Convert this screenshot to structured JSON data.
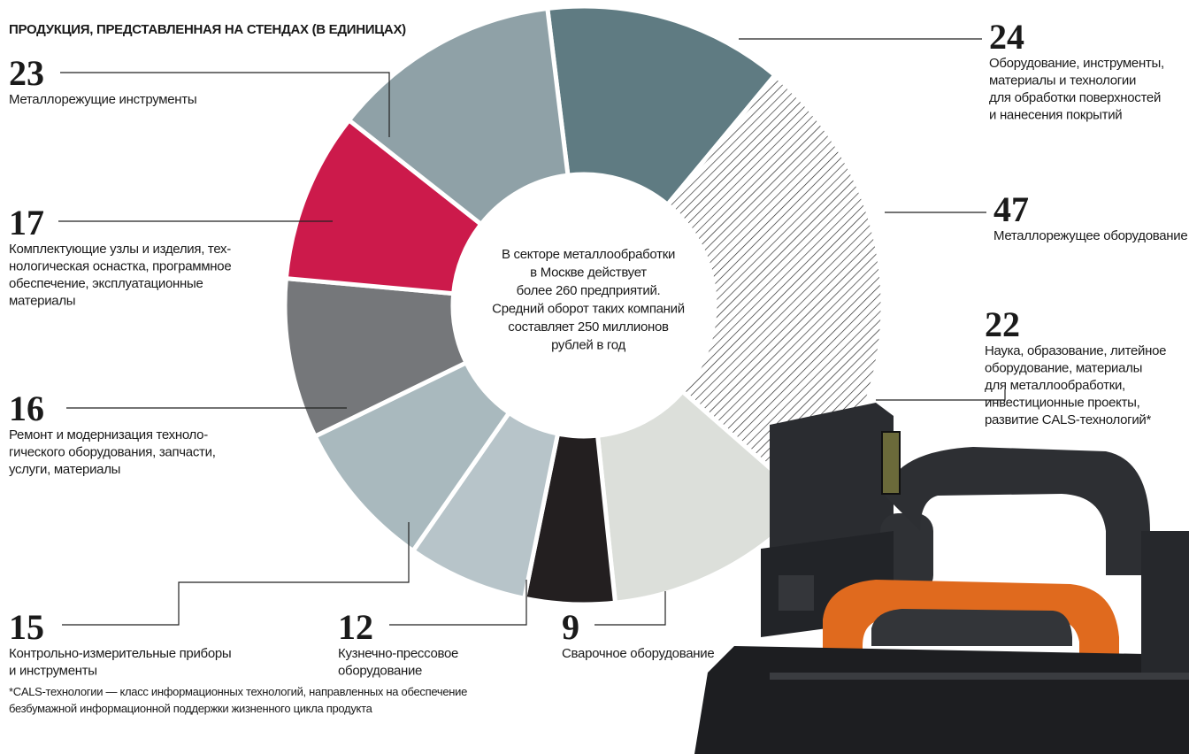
{
  "chart_data": {
    "type": "donut",
    "title": "ПРОДУКЦИЯ, ПРЕДСТАВЛЕННАЯ НА СТЕНДАХ (В ЕДИНИЦАХ)",
    "values": [
      24,
      47,
      22,
      9,
      12,
      15,
      16,
      17,
      23
    ],
    "labels": [
      [
        "Оборудование, инструменты,",
        "материалы и технологии",
        "для обработки поверхностей",
        "и нанесения покрытий"
      ],
      [
        "Металлорежущее оборудование"
      ],
      [
        "Наука, образование, литейное",
        "оборудование, материалы",
        "для металлообработки,",
        "инвестиционные проекты,",
        "развитие CALS-технологий*"
      ],
      [
        "Сварочное оборудование"
      ],
      [
        "Кузнечно-прессовое",
        "оборудование"
      ],
      [
        "Контрольно-измерительные приборы",
        "и инструменты"
      ],
      [
        "Ремонт и модернизация техноло-",
        "гического оборудования, запчасти,",
        "услуги, материалы"
      ],
      [
        "Комплектующие узлы и изделия, тех-",
        "нологическая оснастка, программное",
        "обеспечение, эксплуатационные",
        "материалы"
      ],
      [
        "Металлорежущие инструменты"
      ]
    ],
    "colors": [
      "#5f7b82",
      "#ffffff",
      "#dcdfda",
      "#231f20",
      "#b7c4c9",
      "#a9b9be",
      "#75777a",
      "#cc1a4b",
      "#8fa1a7"
    ],
    "hatched": [
      false,
      true,
      false,
      false,
      false,
      false,
      false,
      false,
      false
    ],
    "annotation": [
      "В секторе металлообработки",
      "в Москве действует",
      "более 260 предприятий.",
      "Средний оборот таких компаний",
      "составляет 250 миллионов",
      "рублей в год"
    ],
    "footnote": [
      "*CALS-технологии — класс информационных технологий, направленных на обеспечение",
      "безбумажной информационной поддержки жизненного цикла продукта"
    ]
  }
}
